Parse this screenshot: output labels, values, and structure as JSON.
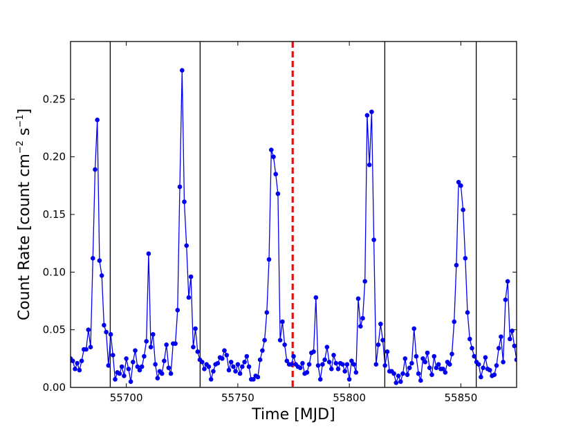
{
  "chart_data": {
    "type": "line",
    "title": "",
    "xlabel": "Time [MJD]",
    "ylabel": {
      "prefix": "Count Rate [count cm",
      "exp1": "−2",
      "mid": " s",
      "exp2": "−1",
      "suffix": "]"
    },
    "xlim": [
      55675,
      55875
    ],
    "ylim": [
      0.0,
      0.3
    ],
    "xticks": [
      55700,
      55750,
      55800,
      55850
    ],
    "yticks": [
      0.0,
      0.05,
      0.1,
      0.15,
      0.2,
      0.25
    ],
    "ytick_labels": [
      "0.00",
      "0.05",
      "0.10",
      "0.15",
      "0.20",
      "0.25"
    ],
    "grid": false,
    "series_color": "#0000ee",
    "period_line_color": "#000000",
    "reference_line_color": "#dd1111",
    "period_lines_x": [
      55692.8,
      55733.1,
      55815.9,
      55856.9
    ],
    "reference_line_x": 55774.6,
    "series": [
      {
        "x": [
          55675,
          55676,
          55677,
          55678,
          55679,
          55680,
          55681,
          55682,
          55683,
          55684,
          55685,
          55686,
          55687,
          55688,
          55689,
          55690,
          55691,
          55692,
          55693,
          55694,
          55695,
          55696,
          55697,
          55698,
          55699,
          55700,
          55701,
          55702,
          55703,
          55704,
          55705,
          55706,
          55707,
          55708,
          55709,
          55710,
          55711,
          55712,
          55713,
          55714,
          55715,
          55716,
          55717,
          55718,
          55719,
          55720,
          55721,
          55722,
          55723,
          55724,
          55725,
          55726,
          55727,
          55728,
          55729,
          55730,
          55731,
          55732,
          55733,
          55734,
          55735,
          55736,
          55737,
          55738,
          55739,
          55740,
          55741,
          55742,
          55743,
          55744,
          55745,
          55746,
          55747,
          55748,
          55749,
          55750,
          55751,
          55752,
          55753,
          55754,
          55755,
          55756,
          55757,
          55758,
          55759,
          55760,
          55761,
          55762,
          55763,
          55764,
          55765,
          55766,
          55767,
          55768,
          55769,
          55770,
          55771,
          55772,
          55773,
          55774,
          55775,
          55776,
          55777,
          55778,
          55779,
          55780,
          55781,
          55782,
          55783,
          55784,
          55785,
          55786,
          55787,
          55788,
          55789,
          55790,
          55791,
          55792,
          55793,
          55794,
          55795,
          55796,
          55797,
          55798,
          55799,
          55800,
          55801,
          55802,
          55803,
          55804,
          55805,
          55806,
          55807,
          55808,
          55809,
          55810,
          55811,
          55812,
          55813,
          55814,
          55815,
          55816,
          55817,
          55818,
          55819,
          55820,
          55821,
          55822,
          55823,
          55824,
          55825,
          55826,
          55827,
          55828,
          55829,
          55830,
          55831,
          55832,
          55833,
          55834,
          55835,
          55836,
          55837,
          55838,
          55839,
          55840,
          55841,
          55842,
          55843,
          55844,
          55845,
          55846,
          55847,
          55848,
          55849,
          55850,
          55851,
          55852,
          55853,
          55854,
          55855,
          55856,
          55857,
          55858,
          55859,
          55860,
          55861,
          55862,
          55863,
          55864,
          55865,
          55866,
          55867,
          55868,
          55869,
          55870,
          55871,
          55872,
          55873,
          55874,
          55875
        ],
        "y": [
          0.025,
          0.023,
          0.016,
          0.021,
          0.015,
          0.023,
          0.033,
          0.033,
          0.05,
          0.035,
          0.112,
          0.189,
          0.232,
          0.11,
          0.097,
          0.054,
          0.048,
          0.019,
          0.046,
          0.028,
          0.007,
          0.013,
          0.012,
          0.018,
          0.01,
          0.025,
          0.016,
          0.005,
          0.022,
          0.032,
          0.018,
          0.015,
          0.018,
          0.027,
          0.04,
          0.116,
          0.035,
          0.046,
          0.02,
          0.008,
          0.014,
          0.012,
          0.023,
          0.037,
          0.017,
          0.012,
          0.038,
          0.038,
          0.067,
          0.174,
          0.275,
          0.161,
          0.123,
          0.078,
          0.096,
          0.035,
          0.051,
          0.031,
          0.024,
          0.022,
          0.016,
          0.02,
          0.018,
          0.007,
          0.014,
          0.02,
          0.021,
          0.026,
          0.025,
          0.032,
          0.028,
          0.015,
          0.022,
          0.018,
          0.014,
          0.02,
          0.012,
          0.018,
          0.022,
          0.027,
          0.018,
          0.007,
          0.007,
          0.01,
          0.009,
          0.024,
          0.032,
          0.041,
          0.065,
          0.111,
          0.206,
          0.2,
          0.185,
          0.168,
          0.041,
          0.057,
          0.037,
          0.023,
          0.02,
          0.02,
          0.027,
          0.02,
          0.018,
          0.017,
          0.021,
          0.012,
          0.013,
          0.02,
          0.03,
          0.031,
          0.078,
          0.019,
          0.007,
          0.02,
          0.024,
          0.035,
          0.022,
          0.016,
          0.028,
          0.021,
          0.016,
          0.021,
          0.02,
          0.014,
          0.02,
          0.007,
          0.023,
          0.02,
          0.013,
          0.077,
          0.053,
          0.06,
          0.092,
          0.236,
          0.193,
          0.239,
          0.128,
          0.02,
          0.037,
          0.055,
          0.041,
          0.019,
          0.031,
          0.014,
          0.014,
          0.012,
          0.004,
          0.01,
          0.005,
          0.012,
          0.025,
          0.011,
          0.017,
          0.021,
          0.051,
          0.027,
          0.012,
          0.006,
          0.025,
          0.022,
          0.03,
          0.017,
          0.011,
          0.027,
          0.017,
          0.02,
          0.016,
          0.016,
          0.013,
          0.022,
          0.02,
          0.029,
          0.057,
          0.106,
          0.178,
          0.175,
          0.154,
          0.112,
          0.065,
          0.042,
          0.034,
          0.027,
          0.022,
          0.02,
          0.009,
          0.017,
          0.026,
          0.016,
          0.015,
          0.01,
          0.011,
          0.019,
          0.034,
          0.044,
          0.022,
          0.076,
          0.092,
          0.042,
          0.049,
          0.036,
          0.024
        ]
      }
    ]
  }
}
